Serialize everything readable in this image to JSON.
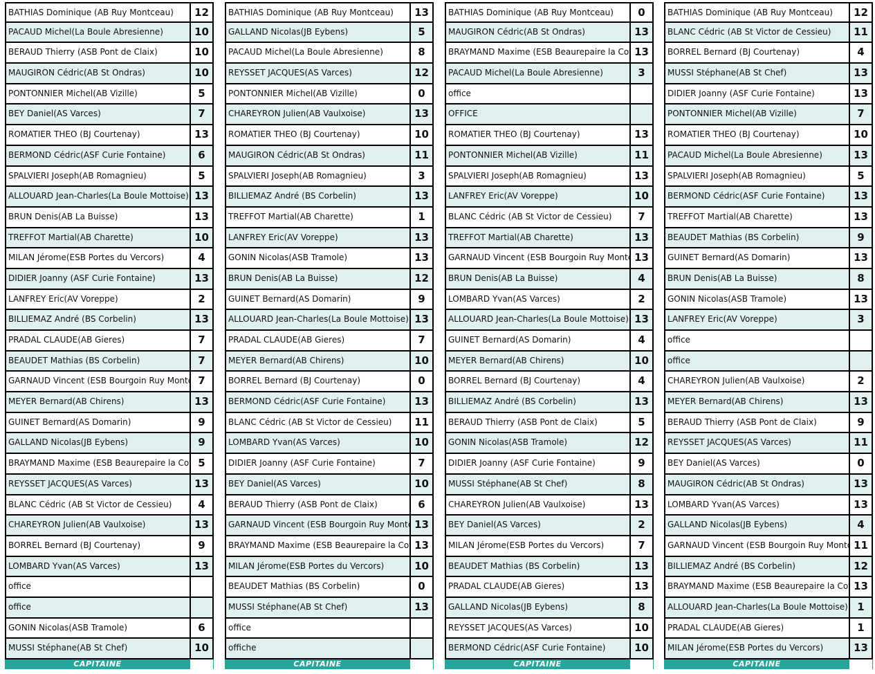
{
  "footer_label": "CAPITAINE",
  "colors": {
    "alt_row": "#dff0ef",
    "footer": "#26a69a"
  },
  "tables": [
    [
      [
        "BATHIAS Dominique (AB Ruy Montceau)",
        "12"
      ],
      [
        "PACAUD Michel(La Boule Abresienne)",
        "10"
      ],
      [
        "BERAUD Thierry (ASB Pont de Claix)",
        "10"
      ],
      [
        "MAUGIRON Cédric(AB St Ondras)",
        "10"
      ],
      [
        "PONTONNIER Michel(AB Vizille)",
        "5"
      ],
      [
        "BEY Daniel(AS Varces)",
        "7"
      ],
      [
        "ROMATIER THEO (BJ Courtenay)",
        "13"
      ],
      [
        "BERMOND Cédric(ASF Curie Fontaine)",
        "6"
      ],
      [
        "SPALVIERI Joseph(AB Romagnieu)",
        "5"
      ],
      [
        "ALLOUARD Jean-Charles(La Boule Mottoise)",
        "13"
      ],
      [
        "BRUN Denis(AB La Buisse)",
        "13"
      ],
      [
        "TREFFOT Martial(AB Charette)",
        "10"
      ],
      [
        "MILAN Jérome(ESB Portes du Vercors)",
        "4"
      ],
      [
        "DIDIER Joanny (ASF Curie Fontaine)",
        "13"
      ],
      [
        "LANFREY Eric(AV Voreppe)",
        "2"
      ],
      [
        "BILLIEMAZ André (BS Corbelin)",
        "13"
      ],
      [
        "PRADAL CLAUDE(AB Gieres)",
        "7"
      ],
      [
        "BEAUDET Mathias (BS Corbelin)",
        "7"
      ],
      [
        "GARNAUD Vincent (ESB Bourgoin Ruy Montceau)",
        "7"
      ],
      [
        "MEYER Bernard(AB Chirens)",
        "13"
      ],
      [
        "GUINET Bernard(AS Domarin)",
        "9"
      ],
      [
        "GALLAND Nicolas(JB Eybens)",
        "9"
      ],
      [
        "BRAYMAND Maxime (ESB Beaurepaire la Cote)",
        "5"
      ],
      [
        "REYSSET JACQUES(AS Varces)",
        "13"
      ],
      [
        "BLANC Cédric (AB St Victor de Cessieu)",
        "4"
      ],
      [
        "CHAREYRON Julien(AB Vaulxoise)",
        "13"
      ],
      [
        "BORREL Bernard (BJ Courtenay)",
        "9"
      ],
      [
        "LOMBARD Yvan(AS Varces)",
        "13"
      ],
      [
        "office",
        ""
      ],
      [
        "office",
        ""
      ],
      [
        "GONIN Nicolas(ASB Tramole)",
        "6"
      ],
      [
        "MUSSI Stéphane(AB St Chef)",
        "10"
      ]
    ],
    [
      [
        "BATHIAS Dominique (AB Ruy Montceau)",
        "13"
      ],
      [
        "GALLAND Nicolas(JB Eybens)",
        "5"
      ],
      [
        "PACAUD Michel(La Boule Abresienne)",
        "8"
      ],
      [
        "REYSSET JACQUES(AS Varces)",
        "12"
      ],
      [
        "PONTONNIER Michel(AB Vizille)",
        "0"
      ],
      [
        "CHAREYRON Julien(AB Vaulxoise)",
        "13"
      ],
      [
        "ROMATIER THEO (BJ Courtenay)",
        "10"
      ],
      [
        "MAUGIRON Cédric(AB St Ondras)",
        "11"
      ],
      [
        "SPALVIERI Joseph(AB Romagnieu)",
        "3"
      ],
      [
        "BILLIEMAZ André (BS Corbelin)",
        "13"
      ],
      [
        "TREFFOT Martial(AB Charette)",
        "1"
      ],
      [
        "LANFREY Eric(AV Voreppe)",
        "13"
      ],
      [
        "GONIN Nicolas(ASB Tramole)",
        "13"
      ],
      [
        "BRUN Denis(AB La Buisse)",
        "12"
      ],
      [
        "GUINET Bernard(AS Domarin)",
        "9"
      ],
      [
        "ALLOUARD Jean-Charles(La Boule Mottoise)",
        "13"
      ],
      [
        "PRADAL CLAUDE(AB Gieres)",
        "7"
      ],
      [
        "MEYER Bernard(AB Chirens)",
        "10"
      ],
      [
        "BORREL Bernard (BJ Courtenay)",
        "0"
      ],
      [
        "BERMOND Cédric(ASF Curie Fontaine)",
        "13"
      ],
      [
        "BLANC Cédric (AB St Victor de Cessieu)",
        "11"
      ],
      [
        "LOMBARD Yvan(AS Varces)",
        "10"
      ],
      [
        "DIDIER Joanny (ASF Curie Fontaine)",
        "7"
      ],
      [
        "BEY Daniel(AS Varces)",
        "10"
      ],
      [
        "BERAUD Thierry (ASB Pont de Claix)",
        "6"
      ],
      [
        "GARNAUD Vincent (ESB Bourgoin Ruy Montceau)",
        "13"
      ],
      [
        "BRAYMAND Maxime (ESB Beaurepaire la Cote)",
        "13"
      ],
      [
        "MILAN Jérome(ESB Portes du Vercors)",
        "10"
      ],
      [
        "BEAUDET Mathias (BS Corbelin)",
        "0"
      ],
      [
        "MUSSI Stéphane(AB St Chef)",
        "13"
      ],
      [
        "office",
        ""
      ],
      [
        "offiche",
        ""
      ]
    ],
    [
      [
        "BATHIAS Dominique (AB Ruy Montceau)",
        "0"
      ],
      [
        "MAUGIRON Cédric(AB St Ondras)",
        "13"
      ],
      [
        "BRAYMAND Maxime (ESB Beaurepaire la Cote)",
        "13"
      ],
      [
        "PACAUD Michel(La Boule Abresienne)",
        "3"
      ],
      [
        "office",
        ""
      ],
      [
        "OFFICE",
        ""
      ],
      [
        "ROMATIER THEO (BJ Courtenay)",
        "13"
      ],
      [
        "PONTONNIER Michel(AB Vizille)",
        "11"
      ],
      [
        "SPALVIERI Joseph(AB Romagnieu)",
        "13"
      ],
      [
        "LANFREY Eric(AV Voreppe)",
        "10"
      ],
      [
        "BLANC Cédric (AB St Victor de Cessieu)",
        "7"
      ],
      [
        "TREFFOT Martial(AB Charette)",
        "13"
      ],
      [
        "GARNAUD Vincent (ESB Bourgoin Ruy Montceau)",
        "13"
      ],
      [
        "BRUN Denis(AB La Buisse)",
        "4"
      ],
      [
        "LOMBARD Yvan(AS Varces)",
        "2"
      ],
      [
        "ALLOUARD Jean-Charles(La Boule Mottoise)",
        "13"
      ],
      [
        "GUINET Bernard(AS Domarin)",
        "4"
      ],
      [
        "MEYER Bernard(AB Chirens)",
        "10"
      ],
      [
        "BORREL Bernard (BJ Courtenay)",
        "4"
      ],
      [
        "BILLIEMAZ André (BS Corbelin)",
        "13"
      ],
      [
        "BERAUD Thierry (ASB Pont de Claix)",
        "5"
      ],
      [
        "GONIN Nicolas(ASB Tramole)",
        "12"
      ],
      [
        "DIDIER Joanny (ASF Curie Fontaine)",
        "9"
      ],
      [
        "MUSSI Stéphane(AB St Chef)",
        "8"
      ],
      [
        "CHAREYRON Julien(AB Vaulxoise)",
        "13"
      ],
      [
        "BEY Daniel(AS Varces)",
        "2"
      ],
      [
        "MILAN Jérome(ESB Portes du Vercors)",
        "7"
      ],
      [
        "BEAUDET Mathias (BS Corbelin)",
        "13"
      ],
      [
        "PRADAL CLAUDE(AB Gieres)",
        "13"
      ],
      [
        "GALLAND Nicolas(JB Eybens)",
        "8"
      ],
      [
        "REYSSET JACQUES(AS Varces)",
        "10"
      ],
      [
        "BERMOND Cédric(ASF Curie Fontaine)",
        "10"
      ]
    ],
    [
      [
        "BATHIAS Dominique (AB Ruy Montceau)",
        "12"
      ],
      [
        "BLANC Cédric (AB St Victor de Cessieu)",
        "11"
      ],
      [
        "BORREL Bernard (BJ Courtenay)",
        "4"
      ],
      [
        "MUSSI Stéphane(AB St Chef)",
        "13"
      ],
      [
        "DIDIER Joanny (ASF Curie Fontaine)",
        "13"
      ],
      [
        "PONTONNIER Michel(AB Vizille)",
        "7"
      ],
      [
        "ROMATIER THEO (BJ Courtenay)",
        "10"
      ],
      [
        "PACAUD Michel(La Boule Abresienne)",
        "13"
      ],
      [
        "SPALVIERI Joseph(AB Romagnieu)",
        "5"
      ],
      [
        "BERMOND Cédric(ASF Curie Fontaine)",
        "13"
      ],
      [
        "TREFFOT Martial(AB Charette)",
        "13"
      ],
      [
        "BEAUDET Mathias (BS Corbelin)",
        "9"
      ],
      [
        "GUINET Bernard(AS Domarin)",
        "13"
      ],
      [
        "BRUN Denis(AB La Buisse)",
        "8"
      ],
      [
        "GONIN Nicolas(ASB Tramole)",
        "13"
      ],
      [
        "LANFREY Eric(AV Voreppe)",
        "3"
      ],
      [
        "office",
        ""
      ],
      [
        "office",
        ""
      ],
      [
        "CHAREYRON Julien(AB Vaulxoise)",
        "2"
      ],
      [
        "MEYER Bernard(AB Chirens)",
        "13"
      ],
      [
        "BERAUD Thierry (ASB Pont de Claix)",
        "9"
      ],
      [
        "REYSSET JACQUES(AS Varces)",
        "11"
      ],
      [
        "BEY Daniel(AS Varces)",
        "0"
      ],
      [
        "MAUGIRON Cédric(AB St Ondras)",
        "13"
      ],
      [
        "LOMBARD Yvan(AS Varces)",
        "13"
      ],
      [
        "GALLAND Nicolas(JB Eybens)",
        "4"
      ],
      [
        "GARNAUD Vincent (ESB Bourgoin Ruy Montceau)",
        "11"
      ],
      [
        "BILLIEMAZ André (BS Corbelin)",
        "12"
      ],
      [
        "BRAYMAND Maxime (ESB Beaurepaire la Cote)",
        "13"
      ],
      [
        "ALLOUARD Jean-Charles(La Boule Mottoise)",
        "1"
      ],
      [
        "PRADAL CLAUDE(AB Gieres)",
        "1"
      ],
      [
        "MILAN Jérome(ESB Portes du Vercors)",
        "13"
      ]
    ]
  ]
}
